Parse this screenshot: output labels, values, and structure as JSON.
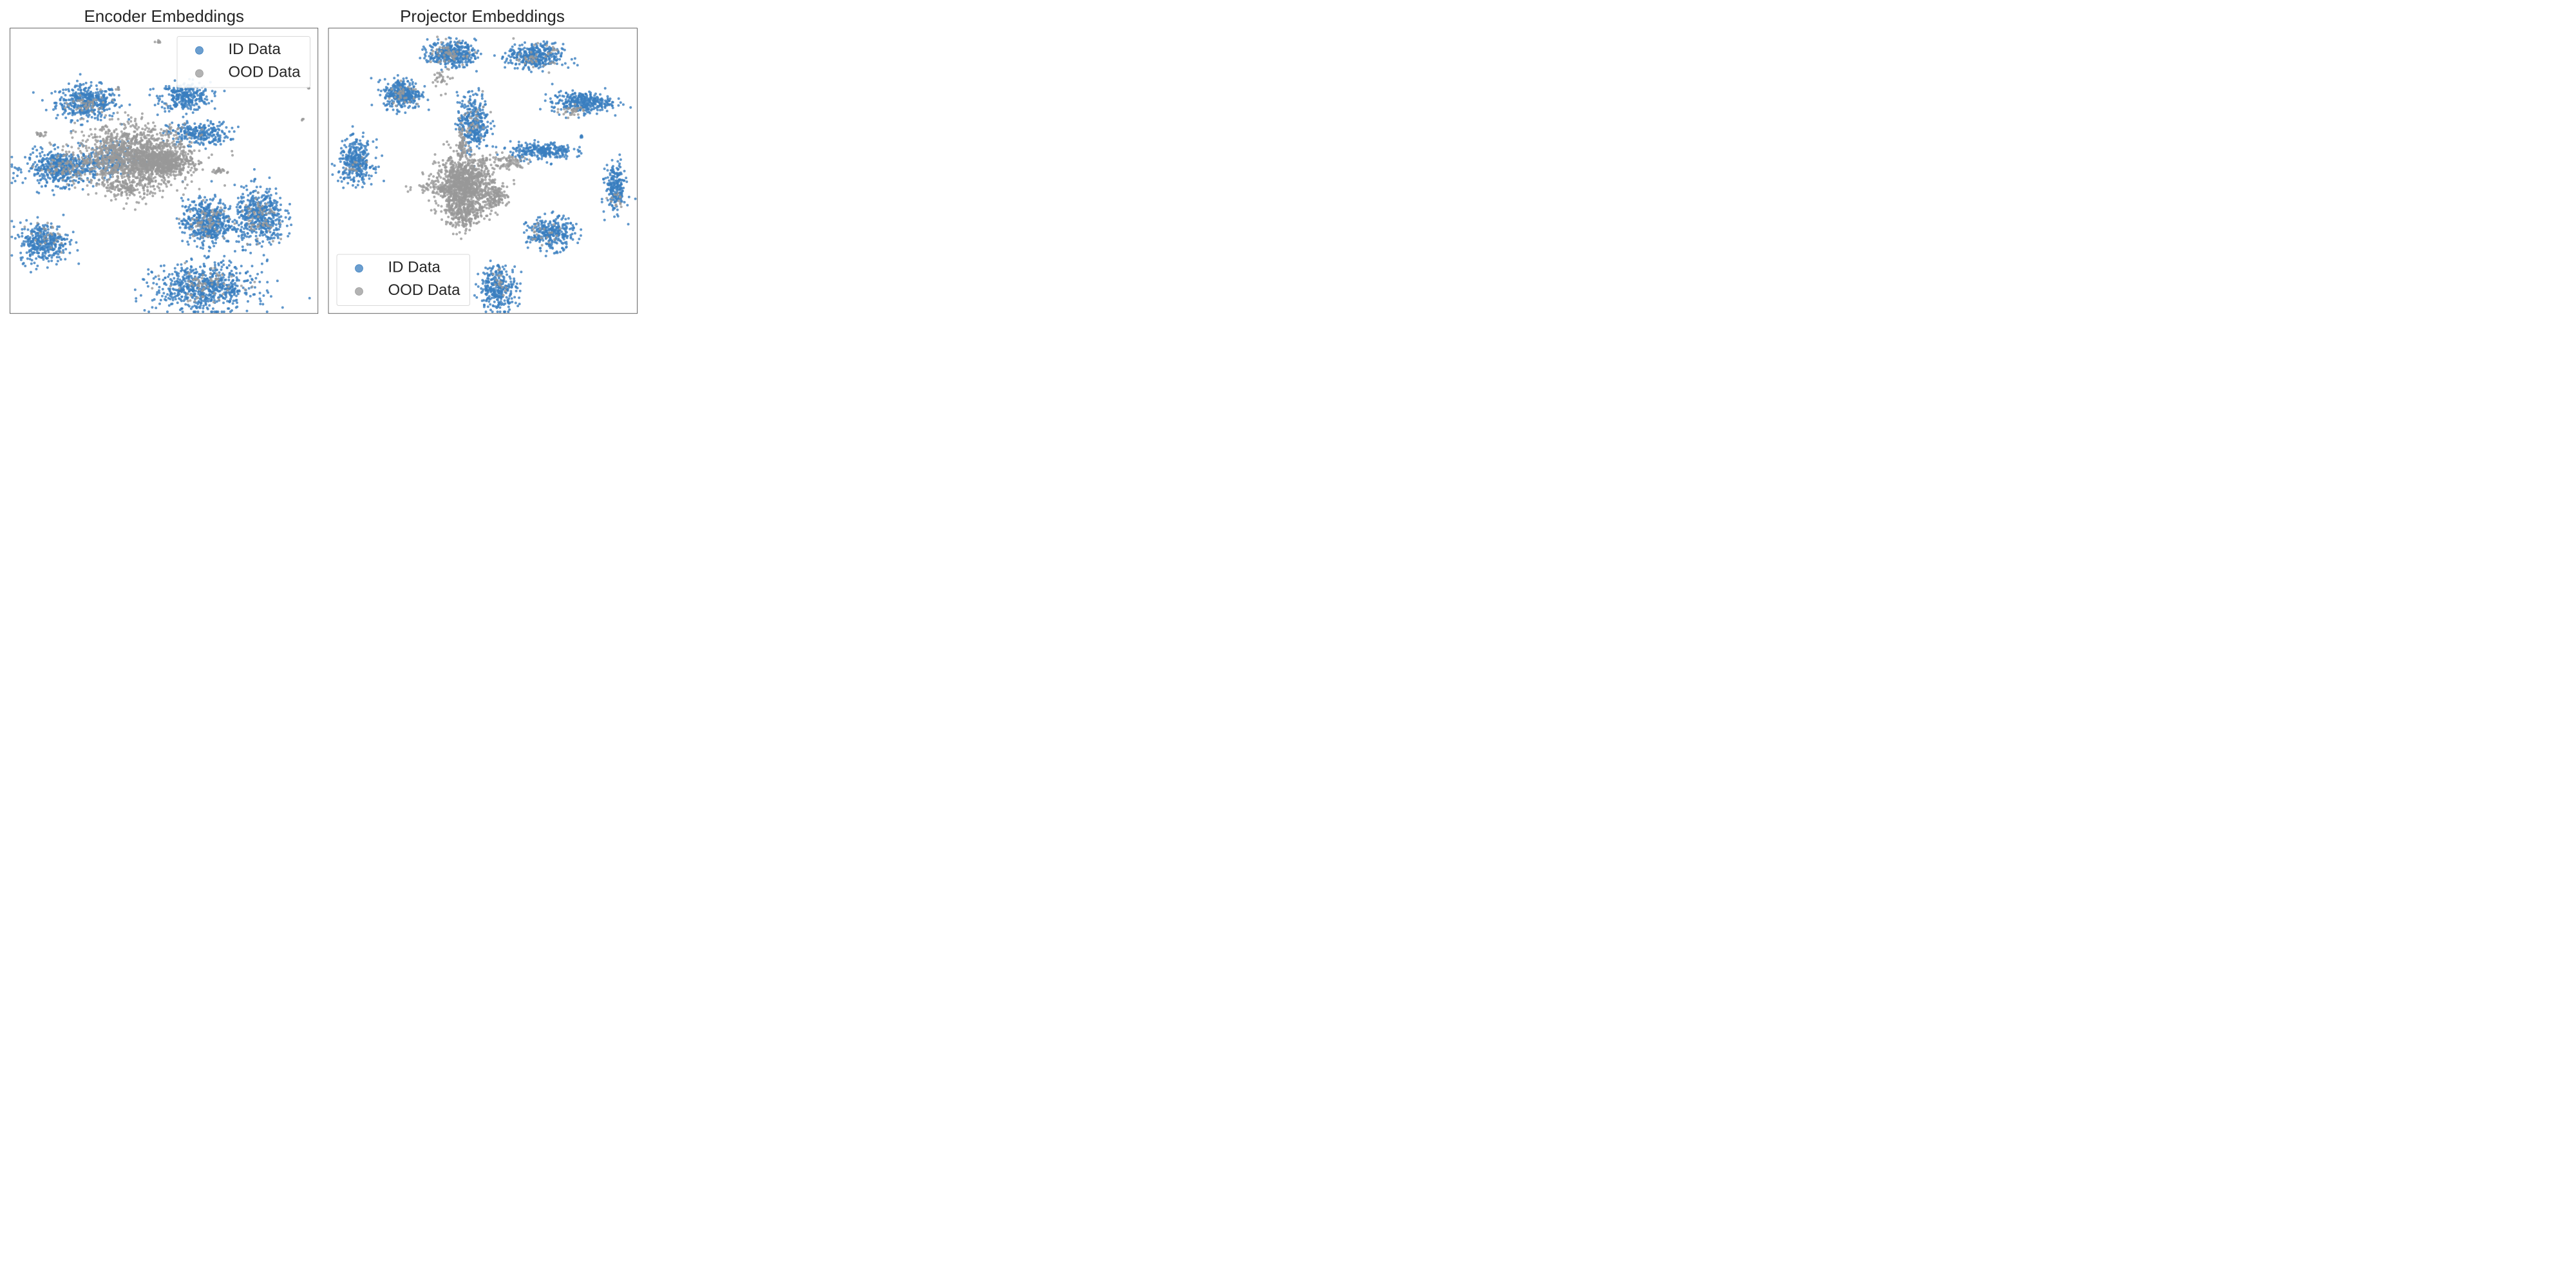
{
  "chart_data": [
    {
      "type": "scatter",
      "title": "Encoder Embeddings",
      "xlabel": "",
      "ylabel": "",
      "xlim": [
        0,
        100
      ],
      "ylim": [
        0,
        100
      ],
      "grid": false,
      "legend": {
        "placement": "top-right",
        "entries": [
          "ID Data",
          "OOD Data"
        ]
      },
      "series": [
        {
          "name": "ID Data",
          "color": "#3a7ebf",
          "clusters": [
            {
              "cx": 25,
              "cy": 74,
              "sx": 5.0,
              "sy": 3.0,
              "n": 420
            },
            {
              "cx": 57,
              "cy": 76,
              "sx": 4.0,
              "sy": 2.5,
              "n": 300
            },
            {
              "cx": 61,
              "cy": 63,
              "sx": 5.0,
              "sy": 2.0,
              "n": 260
            },
            {
              "cx": 17,
              "cy": 51,
              "sx": 6.0,
              "sy": 3.0,
              "n": 520
            },
            {
              "cx": 33,
              "cy": 54,
              "sx": 4.0,
              "sy": 3.0,
              "n": 180
            },
            {
              "cx": 11,
              "cy": 25,
              "sx": 4.0,
              "sy": 3.5,
              "n": 360
            },
            {
              "cx": 64,
              "cy": 32,
              "sx": 4.0,
              "sy": 4.0,
              "n": 480
            },
            {
              "cx": 81,
              "cy": 34,
              "sx": 4.0,
              "sy": 5.0,
              "n": 480
            },
            {
              "cx": 63,
              "cy": 9,
              "sx": 8.0,
              "sy": 4.0,
              "n": 680
            }
          ]
        },
        {
          "name": "OOD Data",
          "color": "#999999",
          "clusters": [
            {
              "cx": 40,
              "cy": 55,
              "sx": 9.0,
              "sy": 5.5,
              "n": 1300
            },
            {
              "cx": 49,
              "cy": 53,
              "sx": 5.0,
              "sy": 2.2,
              "n": 600
            },
            {
              "cx": 39,
              "cy": 44,
              "sx": 3.5,
              "sy": 2.0,
              "n": 120
            },
            {
              "cx": 68,
              "cy": 50,
              "sx": 1.3,
              "sy": 0.4,
              "n": 26
            },
            {
              "cx": 10,
              "cy": 63,
              "sx": 1.0,
              "sy": 0.6,
              "n": 14
            },
            {
              "cx": 48,
              "cy": 95,
              "sx": 0.4,
              "sy": 0.3,
              "n": 6
            },
            {
              "cx": 35,
              "cy": 79,
              "sx": 0.4,
              "sy": 0.4,
              "n": 5
            },
            {
              "cx": 25,
              "cy": 73,
              "sx": 3.0,
              "sy": 2.0,
              "n": 40
            },
            {
              "cx": 17,
              "cy": 51,
              "sx": 4.0,
              "sy": 2.0,
              "n": 60
            },
            {
              "cx": 64,
              "cy": 32,
              "sx": 3.0,
              "sy": 3.0,
              "n": 60
            },
            {
              "cx": 81,
              "cy": 34,
              "sx": 3.0,
              "sy": 3.5,
              "n": 60
            },
            {
              "cx": 63,
              "cy": 10,
              "sx": 6.0,
              "sy": 3.0,
              "n": 70
            },
            {
              "cx": 12,
              "cy": 27,
              "sx": 3.0,
              "sy": 2.5,
              "n": 25
            },
            {
              "cx": 97,
              "cy": 79,
              "sx": 0.2,
              "sy": 0.2,
              "n": 3
            },
            {
              "cx": 95,
              "cy": 68,
              "sx": 0.2,
              "sy": 0.2,
              "n": 3
            }
          ]
        }
      ]
    },
    {
      "type": "scatter",
      "title": "Projector Embeddings",
      "xlabel": "",
      "ylabel": "",
      "xlim": [
        0,
        100
      ],
      "ylim": [
        0,
        100
      ],
      "grid": false,
      "legend": {
        "placement": "bottom-left",
        "entries": [
          "ID Data",
          "OOD Data"
        ]
      },
      "series": [
        {
          "name": "ID Data",
          "color": "#3a7ebf",
          "clusters": [
            {
              "cx": 40,
              "cy": 91,
              "sx": 3.8,
              "sy": 2.2,
              "n": 360
            },
            {
              "cx": 67,
              "cy": 90,
              "sx": 4.5,
              "sy": 2.2,
              "n": 360
            },
            {
              "cx": 24,
              "cy": 77,
              "sx": 3.0,
              "sy": 2.6,
              "n": 330
            },
            {
              "cx": 82,
              "cy": 74,
              "sx": 4.8,
              "sy": 1.8,
              "n": 330
            },
            {
              "cx": 47,
              "cy": 67,
              "sx": 2.6,
              "sy": 5.0,
              "n": 320
            },
            {
              "cx": 69,
              "cy": 57,
              "sx": 5.0,
              "sy": 1.5,
              "n": 260
            },
            {
              "cx": 9,
              "cy": 53,
              "sx": 2.8,
              "sy": 3.8,
              "n": 330
            },
            {
              "cx": 93,
              "cy": 44,
              "sx": 1.6,
              "sy": 4.2,
              "n": 220
            },
            {
              "cx": 72,
              "cy": 28,
              "sx": 3.8,
              "sy": 2.8,
              "n": 300
            },
            {
              "cx": 55,
              "cy": 9,
              "sx": 3.0,
              "sy": 4.0,
              "n": 300
            },
            {
              "cx": 82,
              "cy": 62,
              "sx": 0.3,
              "sy": 0.3,
              "n": 5
            }
          ]
        },
        {
          "name": "OOD Data",
          "color": "#999999",
          "clusters": [
            {
              "cx": 44,
              "cy": 45,
              "sx": 4.5,
              "sy": 5.0,
              "n": 1100
            },
            {
              "cx": 44,
              "cy": 35,
              "sx": 3.0,
              "sy": 3.0,
              "n": 200
            },
            {
              "cx": 54,
              "cy": 41,
              "sx": 2.0,
              "sy": 2.0,
              "n": 120
            },
            {
              "cx": 36,
              "cy": 44,
              "sx": 4.0,
              "sy": 1.0,
              "n": 70
            },
            {
              "cx": 43,
              "cy": 60,
              "sx": 0.6,
              "sy": 3.0,
              "n": 60
            },
            {
              "cx": 57,
              "cy": 53,
              "sx": 4.0,
              "sy": 1.5,
              "n": 80
            },
            {
              "cx": 37,
              "cy": 82,
              "sx": 1.5,
              "sy": 2.0,
              "n": 30
            },
            {
              "cx": 40,
              "cy": 91,
              "sx": 3.0,
              "sy": 2.0,
              "n": 50
            },
            {
              "cx": 67,
              "cy": 90,
              "sx": 3.0,
              "sy": 2.0,
              "n": 40
            },
            {
              "cx": 24,
              "cy": 77,
              "sx": 2.5,
              "sy": 2.0,
              "n": 30
            },
            {
              "cx": 79,
              "cy": 71,
              "sx": 2.0,
              "sy": 1.0,
              "n": 30
            },
            {
              "cx": 47,
              "cy": 67,
              "sx": 2.0,
              "sy": 4.0,
              "n": 30
            },
            {
              "cx": 93,
              "cy": 40,
              "sx": 1.2,
              "sy": 2.0,
              "n": 14
            },
            {
              "cx": 69,
              "cy": 28,
              "sx": 3.0,
              "sy": 2.0,
              "n": 20
            },
            {
              "cx": 55,
              "cy": 11,
              "sx": 2.0,
              "sy": 2.0,
              "n": 16
            },
            {
              "cx": 9,
              "cy": 52,
              "sx": 2.0,
              "sy": 3.0,
              "n": 12
            }
          ]
        }
      ]
    }
  ]
}
